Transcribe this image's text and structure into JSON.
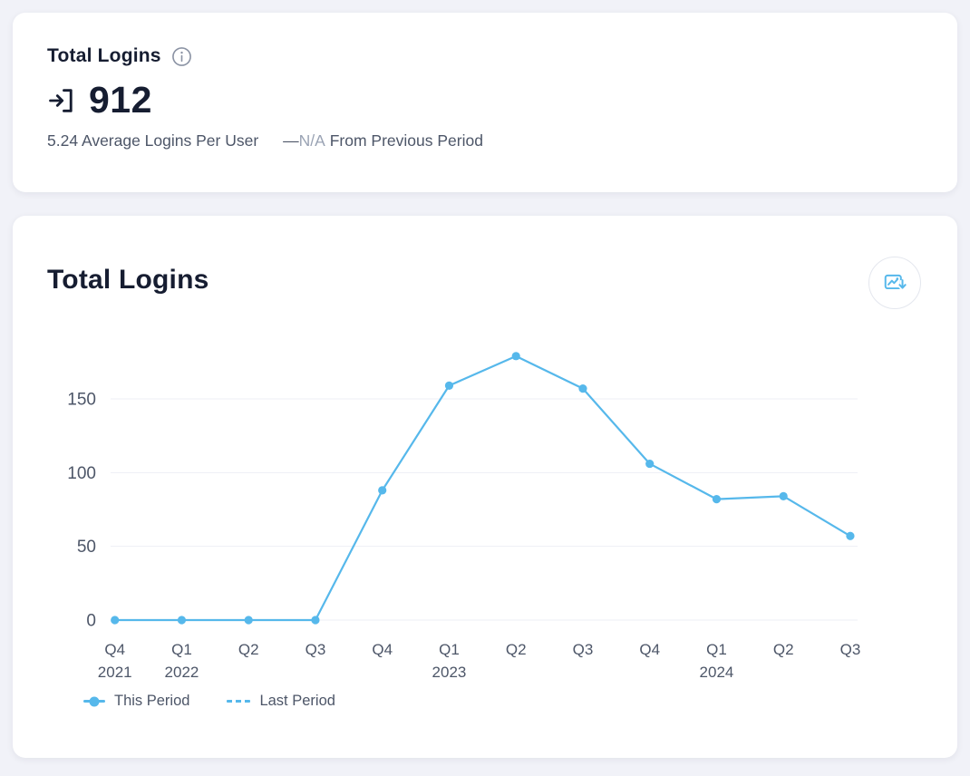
{
  "summary_card": {
    "title": "Total Logins",
    "value": "912",
    "avg_label": "5.24 Average Logins Per User",
    "delta_dash": "—",
    "delta_value": "N/A",
    "delta_label": "From Previous Period"
  },
  "chart_card": {
    "title": "Total Logins"
  },
  "chart_data": {
    "type": "line",
    "title": "Total Logins",
    "categories": [
      "Q4 2021",
      "Q1 2022",
      "Q2 2022",
      "Q3 2022",
      "Q4 2022",
      "Q1 2023",
      "Q2 2023",
      "Q3 2023",
      "Q4 2023",
      "Q1 2024",
      "Q2 2024",
      "Q3 2024"
    ],
    "x_tick_quarters": [
      "Q4",
      "Q1",
      "Q2",
      "Q3",
      "Q4",
      "Q1",
      "Q2",
      "Q3",
      "Q4",
      "Q1",
      "Q2",
      "Q3"
    ],
    "x_tick_years": [
      "2021",
      "2022",
      "",
      "",
      "",
      "2023",
      "",
      "",
      "",
      "2024",
      "",
      ""
    ],
    "series": [
      {
        "name": "This Period",
        "style": "solid",
        "values": [
          0,
          0,
          0,
          0,
          88,
          159,
          179,
          157,
          106,
          82,
          84,
          57
        ]
      },
      {
        "name": "Last Period",
        "style": "dashed",
        "values": []
      }
    ],
    "y_ticks": [
      0,
      50,
      100,
      150
    ],
    "ylim": [
      0,
      180
    ],
    "grid": true,
    "legend_position": "bottom-left"
  },
  "colors": {
    "accent_blue": "#56b8eb",
    "dark_navy": "#161d31",
    "text_gray": "#4d5668",
    "muted_gray": "#9aa3b4",
    "gridline": "#edeff4",
    "page_bg": "#f1f2f8",
    "card_bg": "#ffffff"
  }
}
